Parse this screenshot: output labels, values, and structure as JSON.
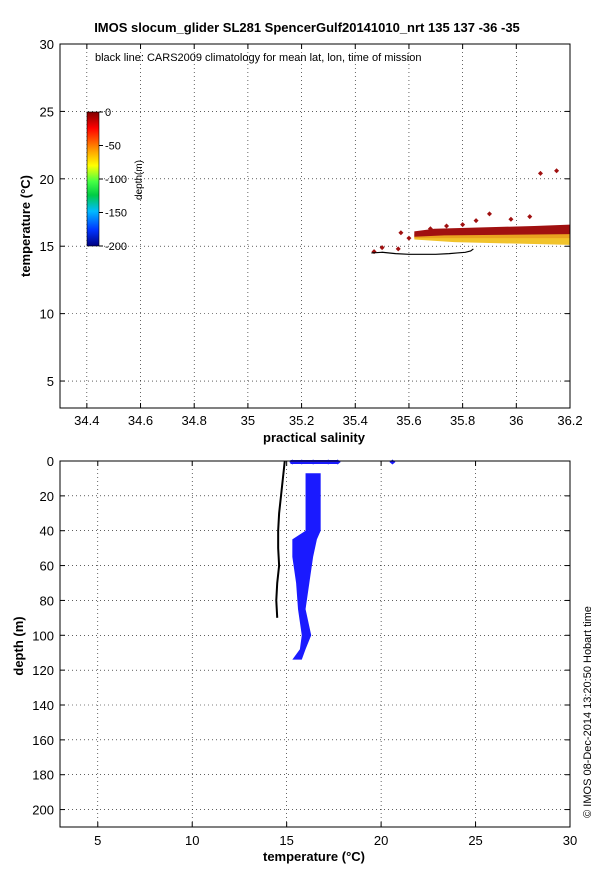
{
  "title": "IMOS slocum_glider SL281 SpencerGulf20141010_nrt 135  137  -36  -35",
  "footer": "© IMOS 08-Dec-2014 13:20:50 Hobart time",
  "colors": {
    "scatter_deep_red": "#a01010",
    "scatter_orange": "#e8a020",
    "scatter_yellow": "#f0c020",
    "scatter_blue": "#1a1aff",
    "climatology_line": "#000000"
  },
  "chart_data": [
    {
      "type": "scatter",
      "annotation": "black line: CARS2009 climatology for mean lat, lon, time of mission",
      "xlabel": "practical salinity",
      "ylabel": "temperature (°C)",
      "xlim": [
        34.3,
        36.2
      ],
      "ylim": [
        3,
        30
      ],
      "xticks": [
        "34.4",
        "34.6",
        "34.8",
        "35",
        "35.2",
        "35.4",
        "35.6",
        "35.8",
        "36",
        "36.2"
      ],
      "xtick_values": [
        34.4,
        34.6,
        34.8,
        35.0,
        35.2,
        35.4,
        35.6,
        35.8,
        36.0,
        36.2
      ],
      "yticks": [
        "5",
        "10",
        "15",
        "20",
        "25",
        "30"
      ],
      "ytick_values": [
        5,
        10,
        15,
        20,
        25,
        30
      ],
      "grid": true,
      "colorbar": {
        "label": "depth(m)",
        "ticks": [
          "0",
          "-50",
          "-100",
          "-150",
          "-200"
        ],
        "tick_values": [
          0,
          -50,
          -100,
          -150,
          -200
        ],
        "range": [
          -200,
          0
        ]
      },
      "observations_band": {
        "salinity_range": [
          35.62,
          36.2
        ],
        "surface_temperature_range": [
          15.7,
          16.6
        ],
        "deep_temperature_range": [
          15.1,
          16.0
        ]
      },
      "scatter_points": [
        {
          "x": 35.47,
          "y": 14.6
        },
        {
          "x": 35.5,
          "y": 14.9
        },
        {
          "x": 35.56,
          "y": 14.8
        },
        {
          "x": 35.57,
          "y": 16.0
        },
        {
          "x": 35.6,
          "y": 15.6
        },
        {
          "x": 35.68,
          "y": 16.3
        },
        {
          "x": 35.74,
          "y": 16.5
        },
        {
          "x": 35.8,
          "y": 16.6
        },
        {
          "x": 35.85,
          "y": 16.9
        },
        {
          "x": 35.9,
          "y": 17.4
        },
        {
          "x": 35.98,
          "y": 17.0
        },
        {
          "x": 36.05,
          "y": 17.2
        },
        {
          "x": 36.09,
          "y": 20.4
        },
        {
          "x": 36.15,
          "y": 20.6
        }
      ],
      "climatology": {
        "x": [
          35.46,
          35.5,
          35.55,
          35.6,
          35.65,
          35.7,
          35.75,
          35.78,
          35.81,
          35.83,
          35.84
        ],
        "y": [
          14.5,
          14.55,
          14.45,
          14.4,
          14.4,
          14.4,
          14.45,
          14.5,
          14.55,
          14.65,
          14.8
        ]
      }
    },
    {
      "type": "scatter",
      "xlabel": "temperature (°C)",
      "ylabel": "depth (m)",
      "xlim": [
        3,
        30
      ],
      "ylim": [
        210,
        0
      ],
      "xticks": [
        "5",
        "10",
        "15",
        "20",
        "25",
        "30"
      ],
      "xtick_values": [
        5,
        10,
        15,
        20,
        25,
        30
      ],
      "yticks": [
        "0",
        "20",
        "40",
        "60",
        "80",
        "100",
        "120",
        "140",
        "160",
        "180",
        "200"
      ],
      "ytick_values": [
        0,
        20,
        40,
        60,
        80,
        100,
        120,
        140,
        160,
        180,
        200
      ],
      "grid": true,
      "observations_profile": {
        "depth": [
          7,
          20,
          40,
          45,
          55,
          70,
          85,
          100,
          108,
          114
        ],
        "temp_min": [
          16.0,
          16.0,
          16.0,
          15.3,
          15.3,
          15.5,
          15.6,
          15.8,
          15.7,
          15.3
        ],
        "temp_max": [
          16.8,
          16.8,
          16.8,
          16.6,
          16.4,
          16.2,
          16.0,
          16.3,
          16.0,
          15.8
        ]
      },
      "surface_points": [
        {
          "x": 15.3,
          "y": 0
        },
        {
          "x": 15.8,
          "y": 0
        },
        {
          "x": 16.4,
          "y": 0
        },
        {
          "x": 17.2,
          "y": 0
        },
        {
          "x": 17.7,
          "y": 0
        },
        {
          "x": 20.6,
          "y": 0
        }
      ],
      "climatology": {
        "x": [
          14.9,
          14.8,
          14.7,
          14.6,
          14.55,
          14.55,
          14.6,
          14.5,
          14.45,
          14.5
        ],
        "y": [
          0,
          10,
          20,
          30,
          40,
          50,
          60,
          70,
          80,
          90
        ]
      }
    }
  ]
}
